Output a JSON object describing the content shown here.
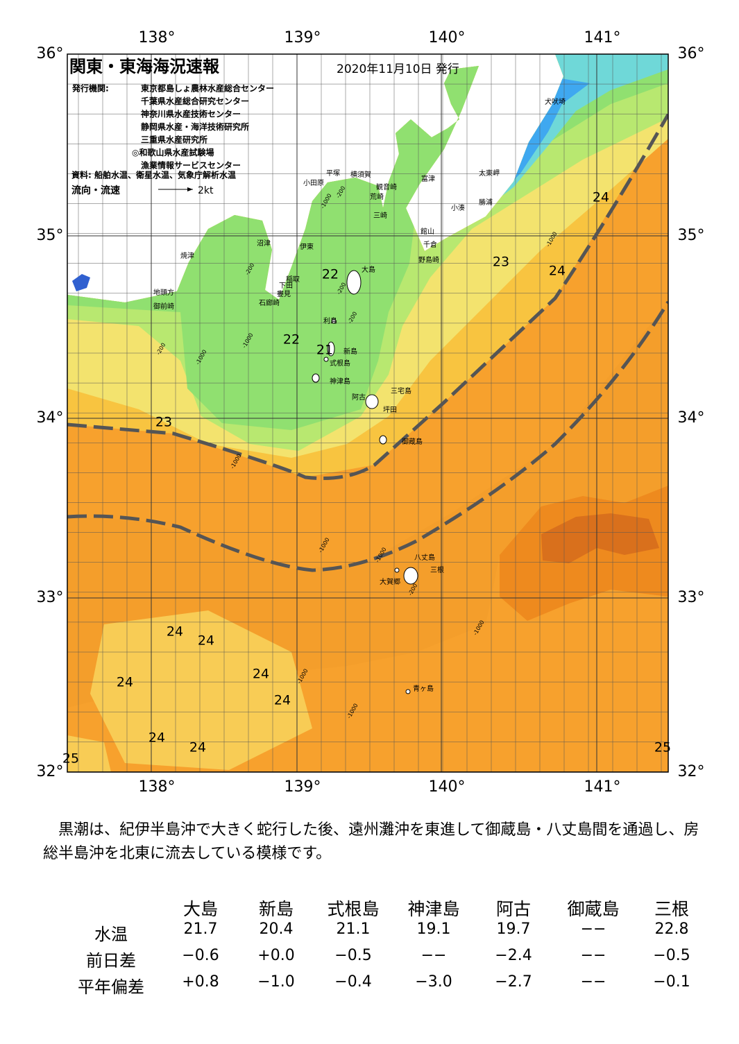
{
  "header": {
    "title": "関東・東海海況速報",
    "date": "2020年11月10日 発行",
    "issuer_label": "発行機関:",
    "issuers": [
      "東京都島しょ農林水産総合センター",
      "千葉県水産総合研究センター",
      "神奈川県水産技術センター",
      "静岡県水産・海洋技術研究所",
      "三重県水産研究所",
      "◎和歌山県水産試験場",
      "漁業情報サービスセンター"
    ],
    "source": "資料: 船舶水温、衛星水温、気象庁解析水温",
    "flow_label": "流向・流速",
    "flow_scale": "2kt"
  },
  "map": {
    "lon_labels": [
      "138°",
      "139°",
      "140°",
      "141°"
    ],
    "lat_labels": [
      "36°",
      "35°",
      "34°",
      "33°",
      "32°"
    ],
    "places": [
      "犬吠埼",
      "太東岬",
      "富津",
      "勝浦",
      "小湊",
      "館山",
      "千倉",
      "野島崎",
      "横須賀",
      "観音崎",
      "平塚",
      "小田原",
      "荒崎",
      "三崎",
      "沼津",
      "伊東",
      "焼津",
      "稲取",
      "下田",
      "大島",
      "婁見",
      "石廊崎",
      "地頭方",
      "御前崎",
      "利島",
      "新島",
      "式根島",
      "神津島",
      "三宅島",
      "阿古",
      "坪田",
      "御蔵島",
      "八丈島",
      "三根",
      "大賀郷",
      "青ヶ島"
    ],
    "isotherm_labels": [
      "22",
      "22",
      "21",
      "23",
      "23",
      "24",
      "24",
      "24",
      "24",
      "24",
      "24",
      "24",
      "24",
      "24",
      "25",
      "25"
    ],
    "depth_labels": [
      "-200",
      "-200",
      "-1000",
      "-1000",
      "-200",
      "-200",
      "-1000",
      "-200",
      "-1000",
      "-1000",
      "-1000",
      "-200",
      "-1000",
      "-1000",
      "-1000",
      "-1000"
    ]
  },
  "text": "黒潮は、紀伊半島沖で大きく蛇行した後、遠州灘沖を東進して御蔵島・八丈島間を通過し、房総半島沖を北東に流去している模様です。",
  "table": {
    "columns": [
      "大島",
      "新島",
      "式根島",
      "神津島",
      "阿古",
      "御蔵島",
      "三根"
    ],
    "rows": [
      {
        "label": "水温",
        "cells": [
          "21.7",
          "20.4",
          "21.1",
          "19.1",
          "19.7",
          "−−",
          "22.8"
        ]
      },
      {
        "label": "前日差",
        "cells": [
          "−0.6",
          "+0.0",
          "−0.5",
          "−−",
          "−2.4",
          "−−",
          "−0.5"
        ]
      },
      {
        "label": "平年偏差",
        "cells": [
          "+0.8",
          "−1.0",
          "−0.4",
          "−3.0",
          "−2.7",
          "−−",
          "−0.1"
        ]
      }
    ]
  }
}
